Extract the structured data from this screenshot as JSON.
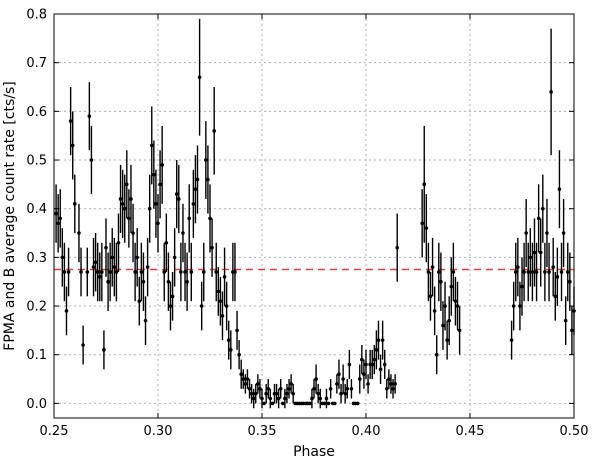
{
  "chart_data": {
    "type": "scatter",
    "title": "",
    "xlabel": "Phase",
    "ylabel": "FPMA and B average count rate [cts/s]",
    "xlim": [
      0.25,
      0.5
    ],
    "ylim": [
      -0.03,
      0.8
    ],
    "xticks": [
      "0.25",
      "0.30",
      "0.35",
      "0.40",
      "0.45",
      "0.50"
    ],
    "yticks": [
      "0.0",
      "0.1",
      "0.2",
      "0.3",
      "0.4",
      "0.5",
      "0.6",
      "0.7",
      "0.8"
    ],
    "grid": true,
    "reference_line": {
      "y": 0.275,
      "color": "#e8413c",
      "style": "dashed"
    },
    "marker_color": "#000000",
    "series": [
      {
        "x": [
          0.251,
          0.252,
          0.253,
          0.254,
          0.255,
          0.256,
          0.257,
          0.258,
          0.259,
          0.26,
          0.262,
          0.263,
          0.264,
          0.266,
          0.267,
          0.268,
          0.269,
          0.27,
          0.271,
          0.272,
          0.273,
          0.274,
          0.275,
          0.276,
          0.277,
          0.278,
          0.279,
          0.28,
          0.281,
          0.282,
          0.283,
          0.284,
          0.285,
          0.286,
          0.287,
          0.288,
          0.289,
          0.29,
          0.291,
          0.292,
          0.293,
          0.294,
          0.295,
          0.296,
          0.297,
          0.298,
          0.299,
          0.3,
          0.301,
          0.302,
          0.303,
          0.304,
          0.305,
          0.306,
          0.307,
          0.308,
          0.309,
          0.31,
          0.311,
          0.312,
          0.313,
          0.314,
          0.315,
          0.316,
          0.317,
          0.318,
          0.319,
          0.32,
          0.321,
          0.322,
          0.323,
          0.324,
          0.325,
          0.326,
          0.327,
          0.328,
          0.329,
          0.33,
          0.331,
          0.332,
          0.333,
          0.334,
          0.335,
          0.336,
          0.337,
          0.338,
          0.339,
          0.34,
          0.341,
          0.342,
          0.343,
          0.344,
          0.345,
          0.346,
          0.347,
          0.348,
          0.349,
          0.35,
          0.351,
          0.352,
          0.353,
          0.354,
          0.355,
          0.356,
          0.357,
          0.358,
          0.359,
          0.36,
          0.361,
          0.362,
          0.363,
          0.364,
          0.365,
          0.366,
          0.367,
          0.368,
          0.369,
          0.37,
          0.371,
          0.372,
          0.373,
          0.374,
          0.375,
          0.376,
          0.377,
          0.378,
          0.379,
          0.38,
          0.381,
          0.382,
          0.383,
          0.384,
          0.385,
          0.386,
          0.387,
          0.388,
          0.389,
          0.39,
          0.391,
          0.392,
          0.393,
          0.394,
          0.395,
          0.396,
          0.397,
          0.398,
          0.399,
          0.4,
          0.401,
          0.402,
          0.403,
          0.404,
          0.405,
          0.406,
          0.407,
          0.408,
          0.409,
          0.41,
          0.411,
          0.412,
          0.413,
          0.414,
          0.415,
          0.427,
          0.428,
          0.429,
          0.43,
          0.431,
          0.432,
          0.433,
          0.434,
          0.435,
          0.436,
          0.437,
          0.438,
          0.439,
          0.44,
          0.441,
          0.442,
          0.443,
          0.444,
          0.445,
          0.47,
          0.471,
          0.472,
          0.473,
          0.474,
          0.475,
          0.476,
          0.477,
          0.478,
          0.479,
          0.48,
          0.481,
          0.482,
          0.483,
          0.484,
          0.485,
          0.486,
          0.487,
          0.488,
          0.489,
          0.49,
          0.491,
          0.492,
          0.493,
          0.494,
          0.495,
          0.496,
          0.497,
          0.498,
          0.499,
          0.5
        ],
        "y": [
          0.39,
          0.37,
          0.38,
          0.3,
          0.27,
          0.19,
          0.27,
          0.58,
          0.53,
          0.41,
          0.35,
          0.27,
          0.12,
          0.27,
          0.59,
          0.5,
          0.28,
          0.29,
          0.27,
          0.26,
          0.27,
          0.11,
          0.32,
          0.25,
          0.27,
          0.3,
          0.28,
          0.27,
          0.33,
          0.42,
          0.41,
          0.4,
          0.45,
          0.38,
          0.42,
          0.35,
          0.27,
          0.3,
          0.21,
          0.27,
          0.25,
          0.17,
          0.28,
          0.4,
          0.53,
          0.47,
          0.41,
          0.37,
          0.45,
          0.49,
          0.27,
          0.33,
          0.25,
          0.2,
          0.22,
          0.3,
          0.43,
          0.42,
          0.27,
          0.35,
          0.27,
          0.25,
          0.38,
          0.27,
          0.41,
          0.44,
          0.46,
          0.67,
          0.2,
          0.27,
          0.5,
          0.46,
          0.38,
          0.32,
          0.56,
          0.27,
          0.23,
          0.21,
          0.18,
          0.26,
          0.2,
          0.13,
          0.11,
          0.27,
          0.27,
          0.15,
          0.1,
          0.06,
          0.05,
          0.04,
          0.05,
          0.03,
          0.02,
          0.01,
          0.02,
          0.04,
          0.03,
          0.01,
          0.0,
          0.02,
          0.03,
          0.01,
          0.0,
          0.02,
          0.02,
          0.01,
          0.03,
          0.0,
          0.01,
          0.02,
          0.03,
          0.04,
          0.02,
          0.0,
          0.0,
          0.0,
          0.0,
          0.0,
          0.0,
          0.0,
          0.0,
          0.01,
          0.03,
          0.05,
          0.02,
          0.01,
          0.0,
          0.0,
          0.01,
          0.0,
          0.03,
          0.0,
          0.0,
          0.04,
          0.06,
          0.02,
          0.05,
          0.02,
          0.03,
          0.08,
          0.03,
          0.0,
          0.0,
          0.0,
          0.05,
          0.09,
          0.06,
          0.08,
          0.04,
          0.08,
          0.08,
          0.09,
          0.11,
          0.13,
          0.07,
          0.13,
          0.08,
          0.03,
          0.05,
          0.04,
          0.03,
          0.04,
          0.32,
          0.37,
          0.45,
          0.36,
          0.27,
          0.22,
          0.28,
          0.19,
          0.1,
          0.27,
          0.25,
          0.16,
          0.2,
          0.13,
          0.17,
          0.24,
          0.27,
          0.21,
          0.2,
          0.15,
          0.13,
          0.2,
          0.27,
          0.28,
          0.2,
          0.24,
          0.27,
          0.35,
          0.27,
          0.3,
          0.27,
          0.31,
          0.27,
          0.38,
          0.31,
          0.4,
          0.27,
          0.35,
          0.27,
          0.64,
          0.28,
          0.22,
          0.26,
          0.44,
          0.27,
          0.35,
          0.17,
          0.27,
          0.25,
          0.15,
          0.19
        ],
        "err": [
          0.06,
          0.06,
          0.06,
          0.06,
          0.06,
          0.05,
          0.05,
          0.07,
          0.07,
          0.06,
          0.06,
          0.05,
          0.04,
          0.05,
          0.07,
          0.07,
          0.06,
          0.06,
          0.06,
          0.05,
          0.06,
          0.04,
          0.06,
          0.06,
          0.06,
          0.06,
          0.06,
          0.06,
          0.06,
          0.07,
          0.07,
          0.07,
          0.07,
          0.06,
          0.07,
          0.06,
          0.06,
          0.06,
          0.05,
          0.06,
          0.06,
          0.05,
          0.06,
          0.07,
          0.08,
          0.07,
          0.07,
          0.06,
          0.07,
          0.08,
          0.06,
          0.06,
          0.06,
          0.05,
          0.05,
          0.06,
          0.07,
          0.07,
          0.06,
          0.06,
          0.06,
          0.06,
          0.07,
          0.06,
          0.07,
          0.07,
          0.07,
          0.12,
          0.05,
          0.06,
          0.08,
          0.07,
          0.07,
          0.06,
          0.09,
          0.06,
          0.05,
          0.05,
          0.05,
          0.06,
          0.05,
          0.04,
          0.04,
          0.06,
          0.06,
          0.04,
          0.03,
          0.03,
          0.02,
          0.02,
          0.02,
          0.02,
          0.02,
          0.02,
          0.02,
          0.02,
          0.02,
          0.02,
          0.0,
          0.02,
          0.02,
          0.02,
          0.0,
          0.02,
          0.02,
          0.02,
          0.02,
          0.0,
          0.02,
          0.02,
          0.02,
          0.02,
          0.02,
          0.0,
          0.0,
          0.0,
          0.0,
          0.0,
          0.0,
          0.0,
          0.0,
          0.02,
          0.02,
          0.03,
          0.02,
          0.02,
          0.0,
          0.0,
          0.02,
          0.0,
          0.02,
          0.0,
          0.0,
          0.02,
          0.03,
          0.02,
          0.03,
          0.02,
          0.02,
          0.03,
          0.02,
          0.0,
          0.0,
          0.0,
          0.03,
          0.03,
          0.03,
          0.03,
          0.02,
          0.03,
          0.03,
          0.03,
          0.04,
          0.04,
          0.03,
          0.04,
          0.03,
          0.02,
          0.02,
          0.02,
          0.02,
          0.02,
          0.07,
          0.07,
          0.12,
          0.07,
          0.06,
          0.05,
          0.06,
          0.05,
          0.04,
          0.06,
          0.06,
          0.05,
          0.05,
          0.04,
          0.05,
          0.06,
          0.06,
          0.05,
          0.05,
          0.05,
          0.04,
          0.05,
          0.06,
          0.06,
          0.05,
          0.06,
          0.06,
          0.07,
          0.06,
          0.06,
          0.06,
          0.07,
          0.06,
          0.07,
          0.07,
          0.07,
          0.06,
          0.07,
          0.06,
          0.13,
          0.06,
          0.05,
          0.06,
          0.08,
          0.06,
          0.07,
          0.05,
          0.06,
          0.06,
          0.05,
          0.05
        ]
      }
    ]
  }
}
